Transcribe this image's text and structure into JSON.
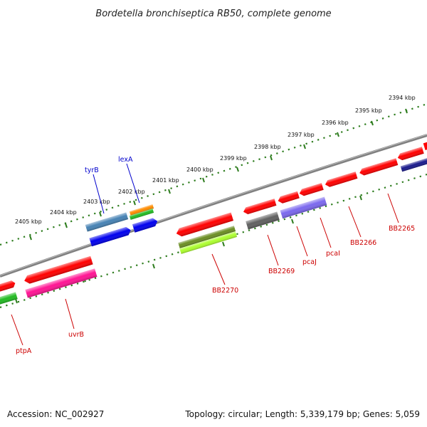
{
  "title": "Bordetella bronchiseptica RB50, complete genome",
  "footer": {
    "accession": "Accession: NC_002927",
    "summary": "Topology: circular; Length: 5,339,179 bp; Genes: 5,059"
  },
  "ruler": {
    "ticks": [
      "2405 kbp",
      "2404 kbp",
      "2403 kbp",
      "2402 kbp",
      "2401 kbp",
      "2400 kbp",
      "2399 kbp",
      "2398 kbp",
      "2397 kbp",
      "2396 kbp",
      "2395 kbp",
      "2394 kbp"
    ]
  },
  "gene_labels": [
    {
      "text": "tyrB",
      "color": "#0000cc"
    },
    {
      "text": "lexA",
      "color": "#0000cc"
    },
    {
      "text": "ptpA",
      "color": "#cc0000"
    },
    {
      "text": "uvrB",
      "color": "#cc0000"
    },
    {
      "text": "BB2270",
      "color": "#cc0000"
    },
    {
      "text": "BB2269",
      "color": "#cc0000"
    },
    {
      "text": "pcaJ",
      "color": "#cc0000"
    },
    {
      "text": "pcaI",
      "color": "#cc0000"
    },
    {
      "text": "BB2266",
      "color": "#cc0000"
    },
    {
      "text": "BB2265",
      "color": "#cc0000"
    }
  ],
  "colors": {
    "backbone": "#808080",
    "ruler": "#2e7d1e",
    "gene_red": "#ff0000",
    "gene_blue": "#0000ee",
    "steel_blue": "#4682b4",
    "magenta": "#ff1493",
    "green": "#22bb22",
    "olive": "#6b8e23",
    "yellow_green": "#adff2f",
    "purple": "#7b68ee",
    "gray": "#606060",
    "orange": "#ff8c00",
    "navy": "#1a1a8c"
  }
}
